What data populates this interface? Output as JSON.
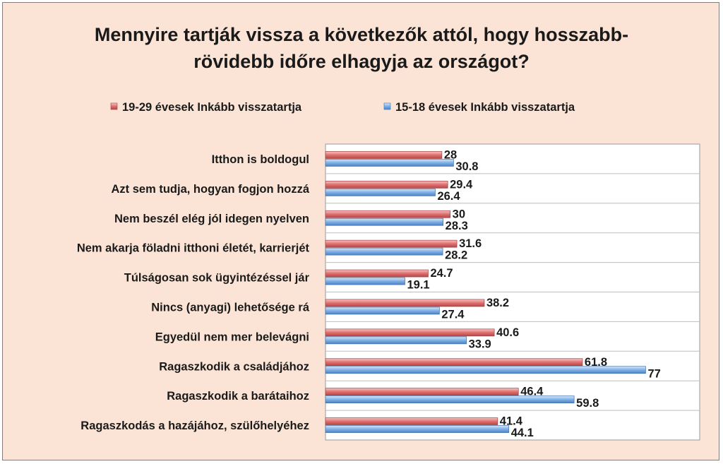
{
  "chart_data": {
    "type": "bar",
    "orientation": "horizontal",
    "title_lines": [
      "Mennyire tartják vissza a következők attól, hogy hosszabb-",
      "rövidebb időre elhagyja az országot?"
    ],
    "legend_position": "top",
    "categories": [
      "Itthon is boldogul",
      "Azt sem tudja, hogyan fogjon hozzá",
      "Nem beszél elég jól idegen nyelven",
      "Nem akarja föladni itthoni életét, karrierjét",
      "Túlságosan sok ügyintézéssel jár",
      "Nincs (anyagi) lehetősége rá",
      "Egyedül nem mer belevágni",
      "Ragaszkodik a családjához",
      "Ragaszkodik a barátaihoz",
      "Ragaszkodás a hazájához, szülőhelyéhez"
    ],
    "series": [
      {
        "name": "19-29 évesek Inkább visszatartja",
        "color": "#e07070",
        "values": [
          28,
          29.4,
          30,
          31.6,
          24.7,
          38.2,
          40.6,
          61.8,
          46.4,
          41.4
        ],
        "labels": [
          "28",
          "29.4",
          "30",
          "31.6",
          "24.7",
          "38.2",
          "40.6",
          "61.8",
          "46.4",
          "41.4"
        ]
      },
      {
        "name": "15-18 évesek Inkább visszatartja",
        "color": "#7fb0e6",
        "values": [
          30.8,
          26.4,
          28.3,
          28.2,
          19.1,
          27.4,
          33.9,
          77,
          59.8,
          44.1
        ],
        "labels": [
          "30.8",
          "26.4",
          "28.3",
          "28.2",
          "19.1",
          "27.4",
          "33.9",
          "77",
          "59.8",
          "44.1"
        ]
      }
    ],
    "xlim": [
      0,
      90
    ],
    "grid": true
  }
}
